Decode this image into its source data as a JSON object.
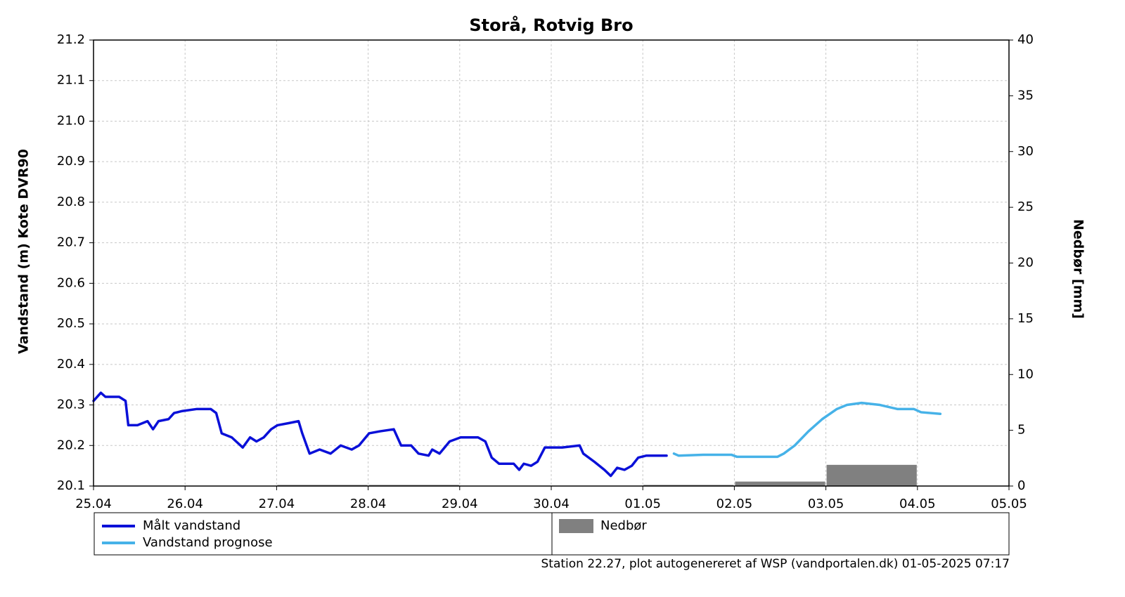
{
  "chart_data": {
    "type": "line",
    "title": "Storå, Rotvig Bro",
    "ylabel": "Vandstand (m) Kote DVR90",
    "y2label": "Nedbør [mm]",
    "footer": "Station 22.27, plot autogenereret af WSP (vandportalen.dk) 01-05-2025 07:17",
    "xlim": [
      0,
      10
    ],
    "xticks": [
      {
        "value": 0,
        "label": "25.04"
      },
      {
        "value": 1,
        "label": "26.04"
      },
      {
        "value": 2,
        "label": "27.04"
      },
      {
        "value": 3,
        "label": "28.04"
      },
      {
        "value": 4,
        "label": "29.04"
      },
      {
        "value": 5,
        "label": "30.04"
      },
      {
        "value": 6,
        "label": "01.05"
      },
      {
        "value": 7,
        "label": "02.05"
      },
      {
        "value": 8,
        "label": "03.05"
      },
      {
        "value": 9,
        "label": "04.05"
      },
      {
        "value": 10,
        "label": "05.05"
      }
    ],
    "ylim": [
      20.1,
      21.2
    ],
    "yticks": [
      20.1,
      20.2,
      20.3,
      20.4,
      20.5,
      20.6,
      20.7,
      20.8,
      20.9,
      {
        "value": 21,
        "label": "21.0"
      },
      21.1,
      21.2
    ],
    "y2lim": [
      0,
      40
    ],
    "y2ticks": [
      0,
      5,
      10,
      15,
      20,
      25,
      30,
      35,
      40
    ],
    "grid": true,
    "series": [
      {
        "name": "Målt vandstand",
        "color": "#0a10d8",
        "x": [
          0,
          0.08,
          0.13,
          0.21,
          0.28,
          0.35,
          0.38,
          0.48,
          0.59,
          0.65,
          0.71,
          0.82,
          0.88,
          0.97,
          1.13,
          1.28,
          1.34,
          1.4,
          1.51,
          1.63,
          1.71,
          1.78,
          1.86,
          1.94,
          2.01,
          2.13,
          2.24,
          2.28,
          2.36,
          2.47,
          2.59,
          2.7,
          2.82,
          2.9,
          3.01,
          3.13,
          3.28,
          3.36,
          3.47,
          3.55,
          3.66,
          3.7,
          3.78,
          3.89,
          4.01,
          4.2,
          4.28,
          4.35,
          4.43,
          4.59,
          4.65,
          4.7,
          4.78,
          4.85,
          4.93,
          5.12,
          5.31,
          5.35,
          5.47,
          5.58,
          5.65,
          5.72,
          5.8,
          5.88,
          5.95,
          6.04,
          6.26
        ],
        "values": [
          20.31,
          20.33,
          20.32,
          20.32,
          20.32,
          20.31,
          20.25,
          20.25,
          20.26,
          20.24,
          20.26,
          20.265,
          20.28,
          20.285,
          20.29,
          20.29,
          20.28,
          20.23,
          20.22,
          20.195,
          20.22,
          20.21,
          20.22,
          20.24,
          20.25,
          20.255,
          20.26,
          20.23,
          20.18,
          20.19,
          20.18,
          20.2,
          20.19,
          20.2,
          20.23,
          20.235,
          20.24,
          20.2,
          20.2,
          20.18,
          20.175,
          20.19,
          20.18,
          20.21,
          20.22,
          20.22,
          20.21,
          20.17,
          20.155,
          20.155,
          20.14,
          20.155,
          20.15,
          20.16,
          20.195,
          20.195,
          20.2,
          20.18,
          20.16,
          20.14,
          20.125,
          20.145,
          20.14,
          20.15,
          20.17,
          20.175,
          20.175
        ]
      },
      {
        "name": "Vandstand prognose",
        "color": "#46b2e8",
        "x": [
          6.34,
          6.39,
          6.66,
          6.97,
          7.03,
          7.47,
          7.54,
          7.66,
          7.81,
          7.96,
          8.12,
          8.23,
          8.39,
          8.59,
          8.78,
          8.96,
          9.04,
          9.25
        ],
        "values": [
          20.18,
          20.175,
          20.177,
          20.177,
          20.172,
          20.172,
          20.18,
          20.2,
          20.235,
          20.265,
          20.29,
          20.3,
          20.305,
          20.3,
          20.29,
          20.29,
          20.282,
          20.278
        ]
      },
      {
        "name": "Nedbør",
        "color": "#808080",
        "type": "bar",
        "axis": "y2",
        "x_start": [
          2,
          3,
          6,
          7,
          8
        ],
        "x_end": [
          3,
          4,
          7,
          8,
          9
        ],
        "values": [
          0.1,
          0.1,
          0.1,
          0.4,
          1.9
        ]
      }
    ]
  }
}
